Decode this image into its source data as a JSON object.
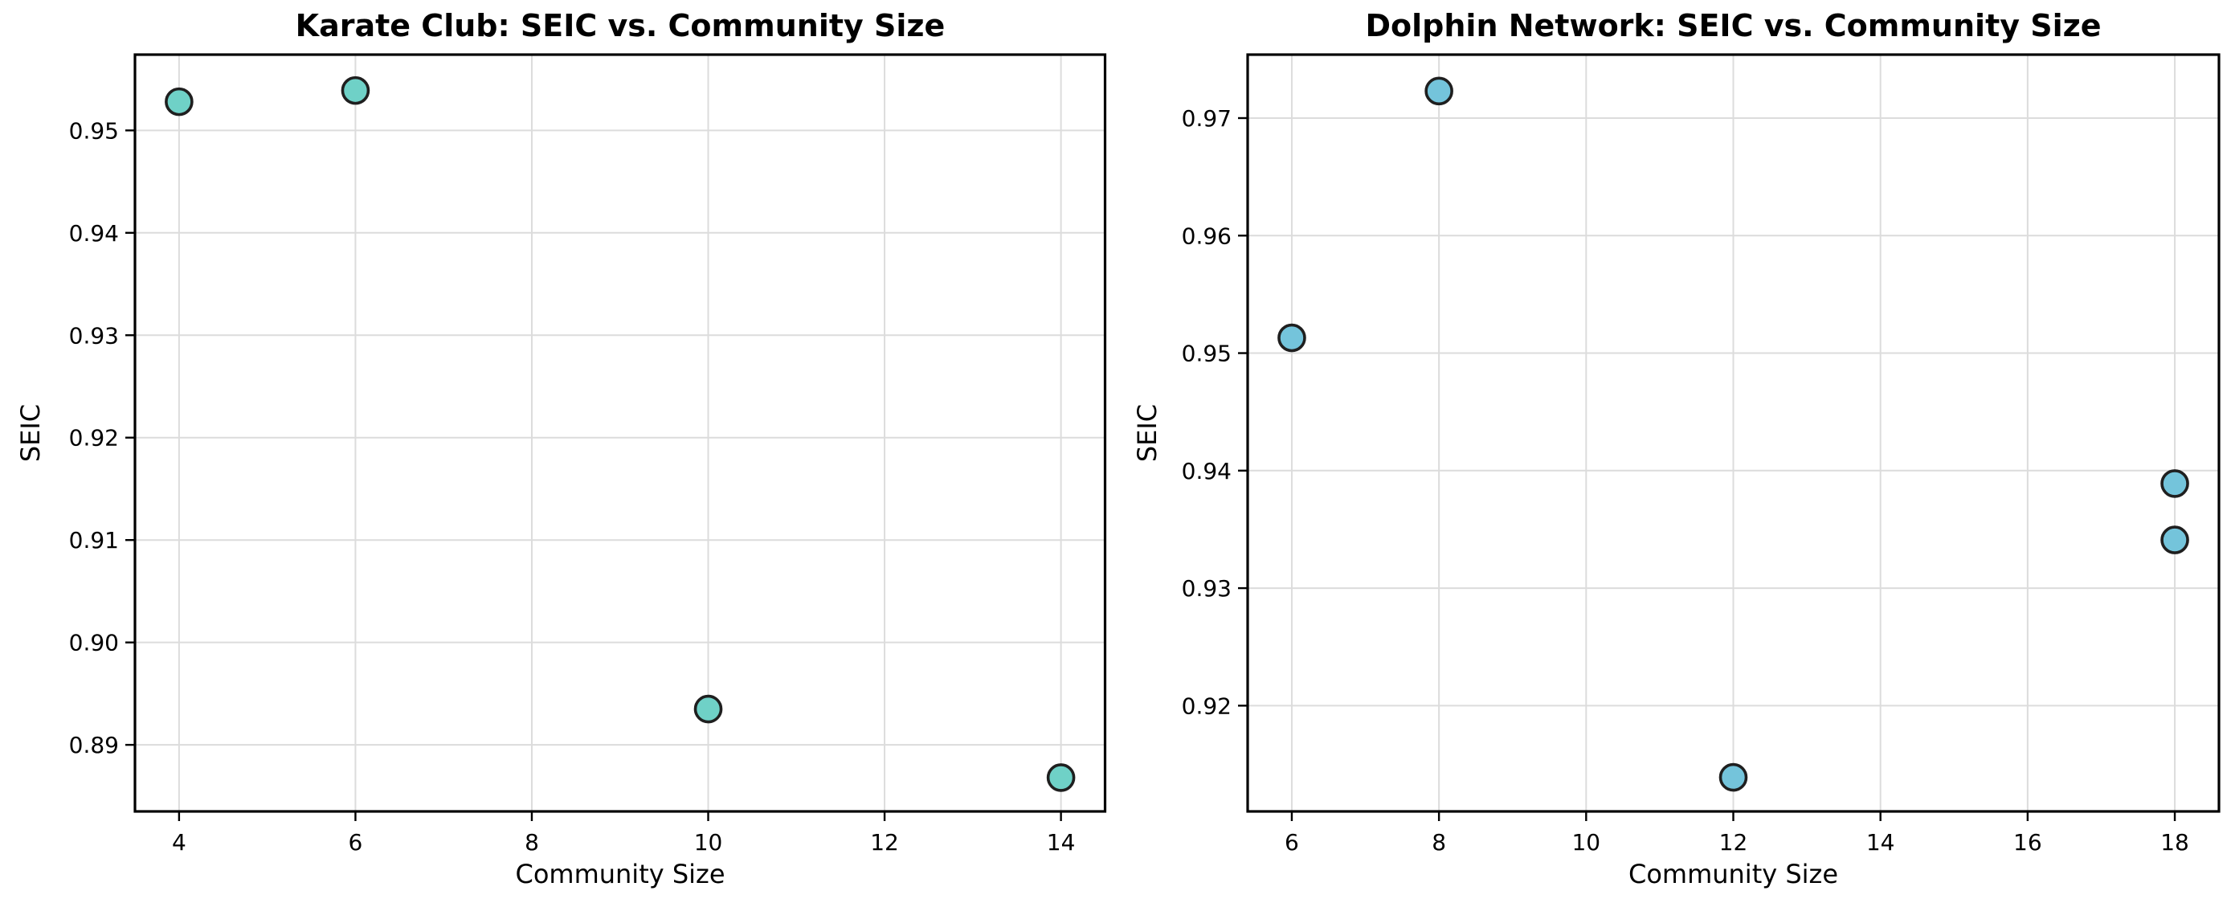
{
  "figure": {
    "background": "#ffffff"
  },
  "style": {
    "grid_color": "#dcdcdc",
    "spine_color": "#000000",
    "tick_color": "#000000",
    "text_color": "#000000",
    "marker_edge_color": "#1f1f1f"
  },
  "chart_data": [
    {
      "type": "scatter",
      "title": "Karate Club: SEIC vs. Community Size",
      "xlabel": "Community Size",
      "ylabel": "SEIC",
      "x": [
        4,
        6,
        10,
        14
      ],
      "y": [
        0.9528,
        0.9539,
        0.8935,
        0.8868
      ],
      "xlim": [
        3.5,
        14.5
      ],
      "ylim": [
        0.8835,
        0.9574
      ],
      "xtick_values": [
        4,
        6,
        8,
        10,
        12,
        14
      ],
      "xtick_labels": [
        "4",
        "6",
        "8",
        "10",
        "12",
        "14"
      ],
      "ytick_values": [
        0.89,
        0.9,
        0.91,
        0.92,
        0.93,
        0.94,
        0.95
      ],
      "ytick_labels": [
        "0.89",
        "0.90",
        "0.91",
        "0.92",
        "0.93",
        "0.94",
        "0.95"
      ],
      "grid": true,
      "legend": null,
      "marker_color": "#6FD1C7"
    },
    {
      "type": "scatter",
      "title": "Dolphin Network: SEIC vs. Community Size",
      "xlabel": "Community Size",
      "ylabel": "SEIC",
      "x": [
        6,
        8,
        12,
        18,
        18
      ],
      "y": [
        0.9513,
        0.9723,
        0.9139,
        0.9389,
        0.9341
      ],
      "xlim": [
        5.4,
        18.6
      ],
      "ylim": [
        0.911,
        0.9754
      ],
      "xtick_values": [
        6,
        8,
        10,
        12,
        14,
        16,
        18
      ],
      "xtick_labels": [
        "6",
        "8",
        "10",
        "12",
        "14",
        "16",
        "18"
      ],
      "ytick_values": [
        0.92,
        0.93,
        0.94,
        0.95,
        0.96,
        0.97
      ],
      "ytick_labels": [
        "0.92",
        "0.93",
        "0.94",
        "0.95",
        "0.96",
        "0.97"
      ],
      "grid": true,
      "legend": null,
      "marker_color": "#74C4DB"
    }
  ]
}
